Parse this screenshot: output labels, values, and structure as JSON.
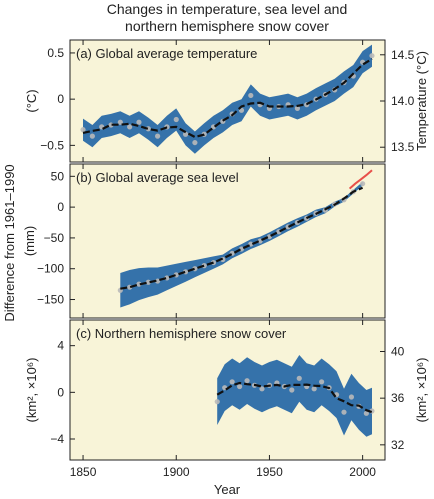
{
  "title_line1": "Changes in temperature, sea level and",
  "title_line2": "northern hemisphere snow cover",
  "shared_ylabel": "Difference from 1961–1990",
  "colors": {
    "panel_bg": "#f8f4d8",
    "band": "#2a6aa8",
    "curve": "#111111",
    "points": "#b9b9b9",
    "satellite": "#e8504a"
  },
  "chart_data": [
    {
      "type": "line",
      "panel_label": "(a) Global average temperature",
      "ylabel": "(°C)",
      "ylabel_right": "Temperature (°C)",
      "ylim": [
        -0.68,
        0.64
      ],
      "yticks": [
        {
          "v": 0.5,
          "t": "0.5"
        },
        {
          "v": 0,
          "t": "0"
        },
        {
          "v": -0.5,
          "t": "−0.5"
        }
      ],
      "yticks_right": [
        {
          "v": 0.48,
          "t": "14.5"
        },
        {
          "v": -0.02,
          "t": "14.0"
        },
        {
          "v": -0.52,
          "t": "13.5"
        }
      ],
      "band_halfwidth": 0.12,
      "x": [
        1850,
        1855,
        1860,
        1865,
        1870,
        1875,
        1880,
        1885,
        1890,
        1895,
        1900,
        1905,
        1910,
        1915,
        1920,
        1925,
        1930,
        1935,
        1940,
        1945,
        1950,
        1955,
        1960,
        1965,
        1970,
        1975,
        1980,
        1985,
        1990,
        1995,
        2000,
        2005
      ],
      "y": [
        -0.33,
        -0.4,
        -0.3,
        -0.28,
        -0.25,
        -0.3,
        -0.25,
        -0.32,
        -0.4,
        -0.3,
        -0.22,
        -0.38,
        -0.47,
        -0.38,
        -0.3,
        -0.24,
        -0.16,
        -0.12,
        0.04,
        -0.06,
        -0.1,
        -0.08,
        -0.06,
        -0.1,
        -0.06,
        0.0,
        0.05,
        0.1,
        0.18,
        0.25,
        0.4,
        0.47
      ]
    },
    {
      "type": "line",
      "panel_label": "(b) Global average sea level",
      "ylabel": "(mm)",
      "ylim": [
        -180,
        70
      ],
      "yticks": [
        {
          "v": 50,
          "t": "50"
        },
        {
          "v": 0,
          "t": "0"
        },
        {
          "v": -50,
          "t": "−50"
        },
        {
          "v": -100,
          "t": "−100"
        },
        {
          "v": -150,
          "t": "−150"
        }
      ],
      "band_halfwidth": [
        28,
        28,
        26,
        24,
        22,
        20,
        18,
        16,
        14,
        12,
        10,
        8,
        8,
        8,
        8,
        7,
        7,
        7,
        7,
        7,
        6,
        6,
        5,
        4,
        3,
        3,
        3
      ],
      "x": [
        1870,
        1875,
        1880,
        1885,
        1890,
        1895,
        1900,
        1905,
        1910,
        1915,
        1920,
        1925,
        1930,
        1935,
        1940,
        1945,
        1950,
        1955,
        1960,
        1965,
        1970,
        1975,
        1980,
        1985,
        1990,
        1995,
        2000
      ],
      "y": [
        -135,
        -130,
        -125,
        -122,
        -120,
        -115,
        -110,
        -105,
        -100,
        -95,
        -90,
        -85,
        -75,
        -68,
        -60,
        -55,
        -48,
        -40,
        -32,
        -25,
        -18,
        -10,
        -5,
        5,
        12,
        25,
        38
      ],
      "satellite_x": [
        1993,
        1996,
        1999,
        2002,
        2005
      ],
      "satellite_y": [
        30,
        38,
        45,
        52,
        60
      ]
    },
    {
      "type": "line",
      "panel_label": "(c) Northern hemisphere snow cover",
      "ylabel": "(km², ×10⁶)",
      "ylabel_right": "(km², ×10⁶)",
      "ylim": [
        -5.8,
        6.2
      ],
      "yticks": [
        {
          "v": 4,
          "t": "4"
        },
        {
          "v": 0,
          "t": "0"
        },
        {
          "v": -4,
          "t": "−4"
        }
      ],
      "yticks_right": [
        {
          "v": 3.5,
          "t": "40"
        },
        {
          "v": -0.5,
          "t": "36"
        },
        {
          "v": -4.5,
          "t": "32"
        }
      ],
      "band_halfwidth": 2.0,
      "x": [
        1922,
        1926,
        1930,
        1934,
        1938,
        1942,
        1946,
        1950,
        1954,
        1958,
        1962,
        1966,
        1970,
        1974,
        1978,
        1982,
        1986,
        1990,
        1994,
        1998,
        2002,
        2005
      ],
      "y": [
        -0.8,
        0.4,
        0.9,
        0.5,
        1.0,
        0.6,
        0.3,
        0.6,
        0.8,
        0.5,
        0.2,
        1.2,
        0.5,
        0.3,
        0.9,
        0.4,
        -0.2,
        -1.7,
        -0.4,
        -1.2,
        -1.8,
        -1.6
      ]
    }
  ],
  "xticks": [
    {
      "v": 1850,
      "t": "1850"
    },
    {
      "v": 1900,
      "t": "1900"
    },
    {
      "v": 1950,
      "t": "1950"
    },
    {
      "v": 2000,
      "t": "2000"
    }
  ],
  "xlim": [
    1843,
    2012
  ],
  "xlabel": "Year"
}
